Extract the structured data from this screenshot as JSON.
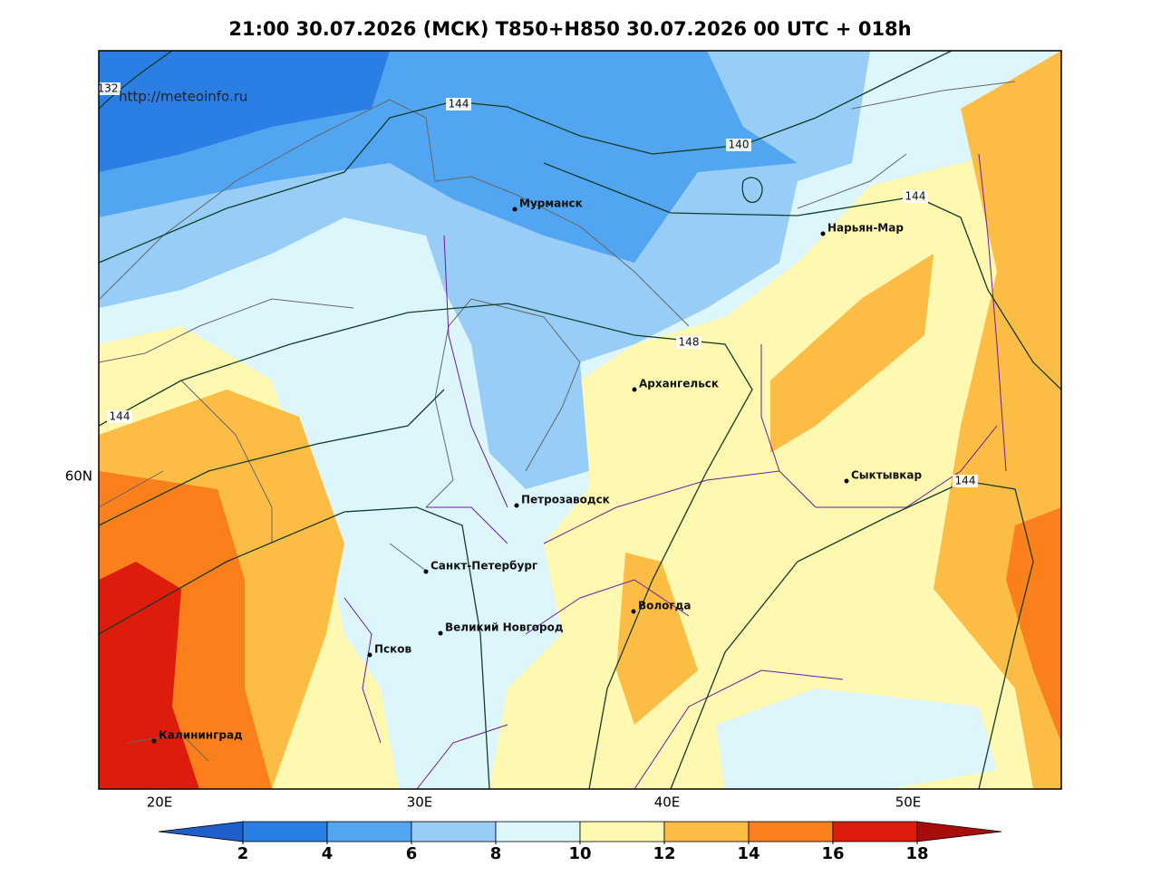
{
  "title": "21:00 30.07.2026 (МСК) T850+H850 30.07.2026 00 UTC + 018h",
  "website": "http://meteoinfo.ru",
  "cities": [
    "Мурманск",
    "Нарьян-Мар",
    "Архангельск",
    "Сыктывкар",
    "Петрозаводск",
    "Санкт-Петербург",
    "Вологда",
    "Великий Новгород",
    "Псков",
    "Калининград"
  ],
  "contour_labels": [
    "132",
    "144",
    "140",
    "144",
    "148",
    "144",
    "144"
  ],
  "lon_labels": [
    "20E",
    "30E",
    "40E",
    "50E"
  ],
  "lat_labels": [
    "60N"
  ],
  "colorbar": {
    "ticks": [
      2,
      4,
      6,
      8,
      10,
      12,
      14,
      16,
      18
    ],
    "colors": [
      "#1f5fc9",
      "#2b7fe4",
      "#52a5f0",
      "#97cdf7",
      "#dcf6fb",
      "#fef8b0",
      "#fdbd45",
      "#fb7f1a",
      "#dd1c0b",
      "#a70d0b"
    ]
  }
}
